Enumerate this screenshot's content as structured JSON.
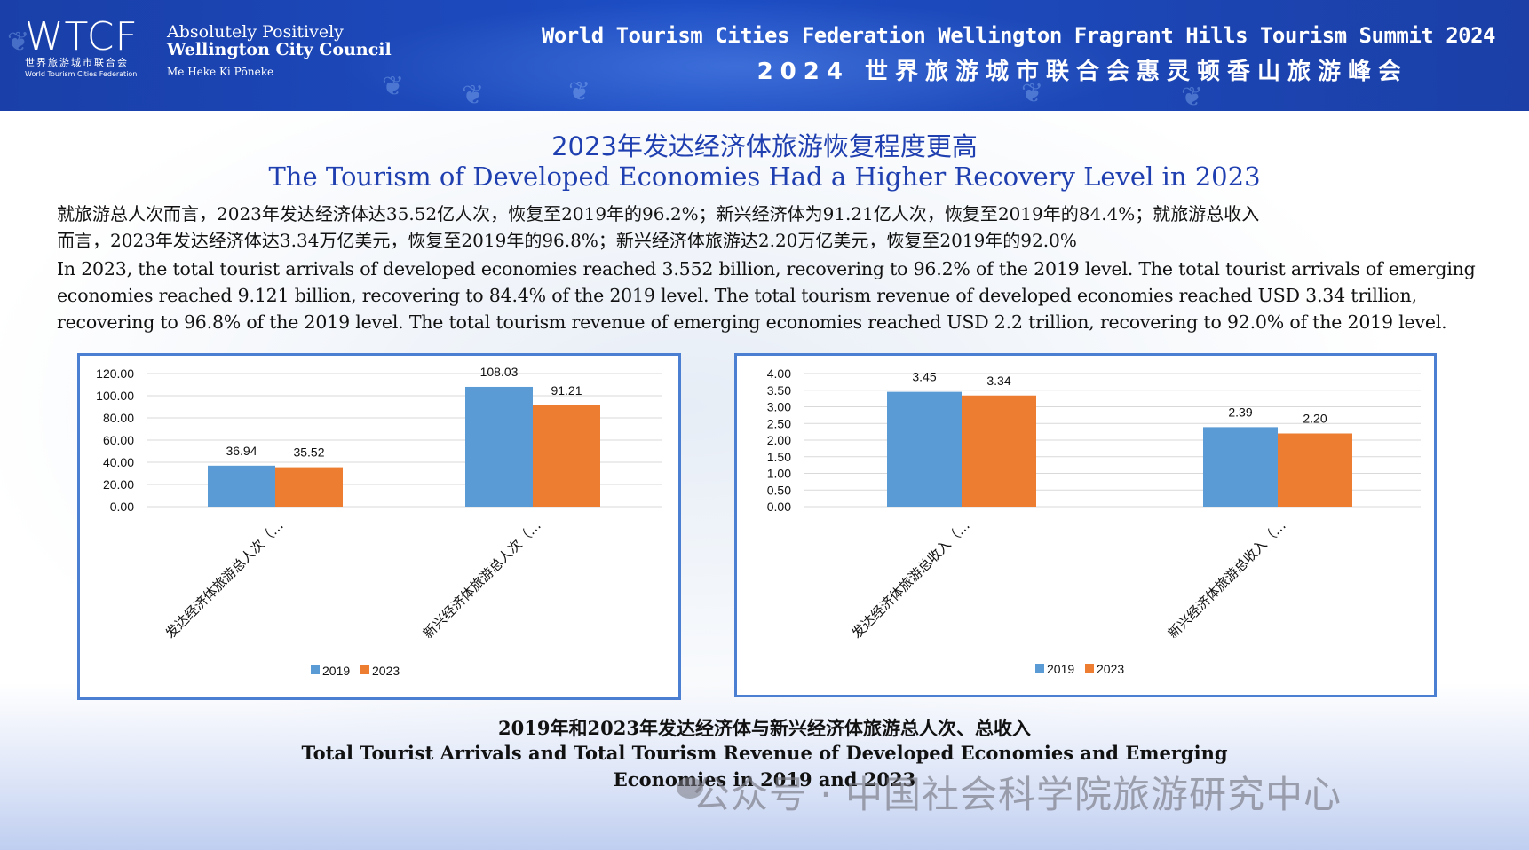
{
  "header": {
    "logo_text": "WTCF",
    "logo_cn": "世界旅游城市联合会",
    "logo_en": "World Tourism Cities Federation",
    "partner_line1": "Absolutely Positively",
    "partner_line2": "Wellington City Council",
    "partner_line3": "Me Heke Ki Pōneke",
    "summit_en": "World Tourism Cities Federation Wellington Fragrant Hills Tourism Summit 2024",
    "summit_cn": "2024 世界旅游城市联合会惠灵顿香山旅游峰会"
  },
  "title_cn": "2023年发达经济体旅游恢复程度更高",
  "title_en": "The Tourism of Developed Economies Had a Higher Recovery Level in 2023",
  "paragraph_cn_1": "就旅游总人次而言，2023年发达经济体达35.52亿人次，恢复至2019年的96.2%；新兴经济体为91.21亿人次，恢复至2019年的84.4%；就旅游总收入",
  "paragraph_cn_2": "而言，2023年发达经济体达3.34万亿美元，恢复至2019年的96.8%；新兴经济体旅游达2.20万亿美元，恢复至2019年的92.0%",
  "paragraph_en_1": "In 2023, the total tourist arrivals of developed economies reached 3.552 billion, recovering to 96.2% of the 2019 level. The total tourist arrivals of emerging",
  "paragraph_en_2": "economies reached 9.121 billion, recovering to 84.4% of the 2019 level. The total tourism revenue of developed economies reached USD 3.34 trillion,",
  "paragraph_en_3": "recovering to 96.8% of the 2019 level. The total tourism revenue of emerging economies reached USD 2.2 trillion, recovering to 92.0% of the 2019 level.",
  "colors": {
    "series_2019": "#5b9bd5",
    "series_2023": "#ed7d31",
    "title_blue": "#1f3fb0",
    "frame": "#4a7fd1"
  },
  "chart_data": [
    {
      "type": "bar",
      "categories": [
        "发达经济体旅游总人次（…",
        "新兴经济体旅游总人次（…"
      ],
      "series": [
        {
          "name": "2019",
          "values": [
            36.94,
            108.03
          ]
        },
        {
          "name": "2023",
          "values": [
            35.52,
            91.21
          ]
        }
      ],
      "data_labels": [
        [
          "36.94",
          "108.03"
        ],
        [
          "35.52",
          "91.21"
        ]
      ],
      "yticks": [
        "0.00",
        "20.00",
        "40.00",
        "60.00",
        "80.00",
        "100.00",
        "120.00"
      ],
      "ylim": [
        0,
        120
      ],
      "grid": true,
      "legend_position": "bottom"
    },
    {
      "type": "bar",
      "categories": [
        "发达经济体旅游总收入（…",
        "新兴经济体旅游总收入（…"
      ],
      "series": [
        {
          "name": "2019",
          "values": [
            3.45,
            2.39
          ]
        },
        {
          "name": "2023",
          "values": [
            3.34,
            2.2
          ]
        }
      ],
      "data_labels": [
        [
          "3.45",
          "2.39"
        ],
        [
          "3.34",
          "2.20"
        ]
      ],
      "yticks": [
        "0.00",
        "0.50",
        "1.00",
        "1.50",
        "2.00",
        "2.50",
        "3.00",
        "3.50",
        "4.00"
      ],
      "ylim": [
        0,
        4
      ],
      "grid": true,
      "legend_position": "bottom"
    }
  ],
  "caption_cn": "2019年和2023年发达经济体与新兴经济体旅游总人次、总收入",
  "caption_en_1": "Total Tourist Arrivals and Total Tourism Revenue of Developed Economies and Emerging",
  "caption_en_2": "Economies in 2019 and 2023",
  "watermark": "公众号 · 中国社会科学院旅游研究中心"
}
